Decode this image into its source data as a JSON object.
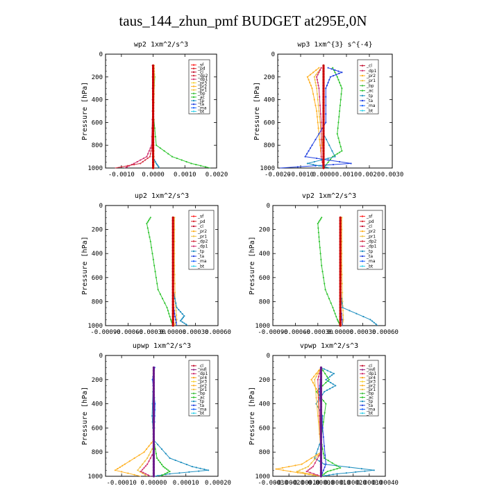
{
  "figure_title": "taus_144_zhun_pmf  BUDGET at295E,0N",
  "colors": {
    "sf": "#ff2020",
    "pd": "#d8202a",
    "cl": "#c31030",
    "dp1": "#d03070",
    "dp2": "#d43040",
    "dp3": "#e0503a",
    "dp4": "#cc2244",
    "pr1": "#f0c040",
    "pr2": "#ffb020",
    "pr3": "#f6d23a",
    "pr4": "#f7a01a",
    "ac": "#2ec42e",
    "bp": "#3fbf3f",
    "tp": "#2090c0",
    "ta": "#2040e0",
    "ma": "#1860ff",
    "bt": "#30d0e8",
    "mfl": "#8b1a7a",
    "bar": "#e00000",
    "bar_purple": "#6a1a8a"
  },
  "chart_data": [
    {
      "type": "line",
      "title": "wp2  1xm^2/s^3",
      "ylabel": "Pressure [hPa]",
      "xlim": [
        -0.0015,
        0.002
      ],
      "ylim": [
        1000,
        0
      ],
      "xticks": [
        "-0.0010",
        "0.0000",
        "0.0010",
        "0.0020"
      ],
      "yticks": [
        "0",
        "200",
        "400",
        "600",
        "800",
        "1000"
      ],
      "legend": [
        "_sf",
        "_pd",
        "_cl",
        "_dp2",
        "_dp1",
        "_pr3",
        "_pr2",
        "_pr1",
        "_bp",
        "_ac",
        "_tp",
        "_ta",
        "_ma",
        "_bt"
      ],
      "series": [
        {
          "name": "_ac",
          "color_key": "ac",
          "pressure": [
            100,
            200,
            500,
            800,
            900,
            960,
            1000
          ],
          "values": [
            0.0,
            5e-05,
            0.0,
            0.0001,
            0.0006,
            0.0012,
            0.0018
          ]
        },
        {
          "name": "_pr1",
          "color_key": "pr1",
          "pressure": [
            100,
            200,
            500,
            800,
            1000
          ],
          "values": [
            3e-05,
            4e-05,
            2e-05,
            2e-05,
            3e-05
          ]
        },
        {
          "name": "_dp1",
          "color_key": "dp1",
          "pressure": [
            100,
            500,
            800,
            900,
            960,
            1000
          ],
          "values": [
            -2e-05,
            -2e-05,
            -5e-05,
            -0.0002,
            -0.0006,
            -0.0009
          ]
        },
        {
          "name": "_dp2",
          "color_key": "dp2",
          "pressure": [
            100,
            500,
            800,
            900,
            960,
            1000
          ],
          "values": [
            -1e-05,
            -1e-05,
            -3e-05,
            -0.0001,
            -0.0004,
            -0.0012
          ]
        },
        {
          "name": "_tp",
          "color_key": "tp",
          "pressure": [
            100,
            500,
            900,
            960,
            1000
          ],
          "values": [
            0.0,
            0.0,
            -2e-05,
            0.0001,
            0.0002
          ]
        },
        {
          "name": "_pd",
          "color_key": "pd",
          "pressure": [
            100,
            1000
          ],
          "values": [
            0.0,
            0.0
          ]
        }
      ]
    },
    {
      "type": "line",
      "title": "wp3  1xm^{3} s^{-4}",
      "ylabel": "Pressure [hPa]",
      "xlim": [
        -0.002,
        0.003
      ],
      "ylim": [
        1000,
        0
      ],
      "xticks": [
        "-0.0020",
        "-0.0010",
        "0.0000",
        "0.0010",
        "0.0020",
        "0.0030"
      ],
      "yticks": [
        "0",
        "200",
        "400",
        "600",
        "800",
        "1000"
      ],
      "legend": [
        "_cl",
        "_dp1",
        "_pr2",
        "_pr1",
        "_bp",
        "_ac",
        "_tp",
        "_ta",
        "_ma",
        "_bt"
      ],
      "series": [
        {
          "name": "_ac",
          "color_key": "ac",
          "pressure": [
            120,
            200,
            300,
            500,
            700,
            850,
            900,
            1000
          ],
          "values": [
            0.0004,
            0.0006,
            0.0008,
            0.0007,
            0.0006,
            0.0008,
            0.0004,
            0.0
          ]
        },
        {
          "name": "_pr2",
          "color_key": "pr2",
          "pressure": [
            120,
            200,
            300,
            500,
            700,
            900,
            1000
          ],
          "values": [
            -0.0002,
            -0.0007,
            -0.0005,
            -0.0003,
            -0.0002,
            -0.0001,
            0.0
          ]
        },
        {
          "name": "_pr1",
          "color_key": "pr1",
          "pressure": [
            120,
            200,
            300,
            500,
            700,
            900,
            1000
          ],
          "values": [
            -0.0001,
            -0.0004,
            -0.0003,
            -0.0002,
            -0.0001,
            0.0,
            0.0
          ]
        },
        {
          "name": "_dp1",
          "color_key": "dp1",
          "pressure": [
            120,
            200,
            300,
            600,
            900,
            1000
          ],
          "values": [
            -0.0001,
            -0.0003,
            -0.0002,
            -0.0001,
            -0.0001,
            0.0
          ]
        },
        {
          "name": "_ta",
          "color_key": "ta",
          "pressure": [
            120,
            160,
            200,
            300,
            600,
            800,
            900,
            960,
            1000
          ],
          "values": [
            0.0002,
            0.0008,
            0.0003,
            0.0001,
            0.0001,
            -0.0005,
            -0.0008,
            0.0012,
            -0.0019
          ]
        },
        {
          "name": "_tp",
          "color_key": "tp",
          "pressure": [
            120,
            300,
            700,
            900,
            960,
            1000
          ],
          "values": [
            0.0,
            0.0,
            0.0,
            0.0005,
            -0.0007,
            0.0003
          ]
        }
      ]
    },
    {
      "type": "line",
      "title": "up2  1xm^2/s^3",
      "ylabel": "Pressure [hPa]",
      "xlim": [
        -0.0009,
        0.0006
      ],
      "ylim": [
        1000,
        0
      ],
      "xticks": [
        "-0.00090",
        "-0.00060",
        "-0.00030",
        "0.00000",
        "0.00030",
        "0.00060"
      ],
      "yticks": [
        "0",
        "200",
        "400",
        "600",
        "800",
        "1000"
      ],
      "legend": [
        "_sf",
        "_pd",
        "_cl",
        "_pr2",
        "_pr1",
        "_dp2",
        "_dp1",
        "_tp",
        "_ta",
        "_ma",
        "_bt"
      ],
      "series": [
        {
          "name": "_ac",
          "color_key": "ac",
          "pressure": [
            100,
            150,
            300,
            500,
            700,
            850,
            950,
            1000
          ],
          "values": [
            -0.0003,
            -0.00035,
            -0.0003,
            -0.00025,
            -0.0002,
            -8e-05,
            -3e-05,
            0.0
          ]
        },
        {
          "name": "_pr1",
          "color_key": "pr1",
          "pressure": [
            100,
            500,
            800,
            950,
            1000
          ],
          "values": [
            2e-05,
            2e-05,
            3e-05,
            5e-05,
            2e-05
          ]
        },
        {
          "name": "_tp",
          "color_key": "tp",
          "pressure": [
            100,
            700,
            850,
            920,
            960,
            1000
          ],
          "values": [
            0.0,
            0.0,
            5e-05,
            0.00015,
            0.0001,
            0.0002
          ]
        },
        {
          "name": "_ta",
          "color_key": "ta",
          "pressure": [
            100,
            800,
            900,
            1000
          ],
          "values": [
            0.0,
            0.0,
            2e-05,
            5e-05
          ]
        },
        {
          "name": "_pd",
          "color_key": "pd",
          "pressure": [
            100,
            1000
          ],
          "values": [
            0.0,
            0.0
          ]
        }
      ]
    },
    {
      "type": "line",
      "title": "vp2  1xm^2/s^3",
      "ylabel": "Pressure [hPa]",
      "xlim": [
        -0.0009,
        0.0006
      ],
      "ylim": [
        1000,
        0
      ],
      "xticks": [
        "-0.00090",
        "-0.00060",
        "-0.00030",
        "0.00000",
        "0.00030",
        "0.00060"
      ],
      "yticks": [
        "0",
        "200",
        "400",
        "600",
        "800",
        "1000"
      ],
      "legend": [
        "_sf",
        "_pd",
        "_cl",
        "_pr2",
        "_pr1",
        "_dp2",
        "_dp1",
        "_tp",
        "_ta",
        "_ma",
        "_bt"
      ],
      "series": [
        {
          "name": "_ac",
          "color_key": "ac",
          "pressure": [
            100,
            150,
            300,
            500,
            700,
            850,
            950,
            1000
          ],
          "values": [
            -0.00025,
            -0.0003,
            -0.00028,
            -0.00025,
            -0.0002,
            -0.0001,
            -4e-05,
            0.0
          ]
        },
        {
          "name": "_pr1",
          "color_key": "pr1",
          "pressure": [
            100,
            500,
            800,
            950,
            1000
          ],
          "values": [
            2e-05,
            2e-05,
            3e-05,
            4e-05,
            2e-05
          ]
        },
        {
          "name": "_tp",
          "color_key": "tp",
          "pressure": [
            100,
            700,
            850,
            950,
            1000
          ],
          "values": [
            0.0,
            0.0,
            3e-05,
            0.0004,
            0.0005
          ]
        },
        {
          "name": "_ta",
          "color_key": "ta",
          "pressure": [
            100,
            800,
            1000
          ],
          "values": [
            0.0,
            0.0,
            3e-05
          ]
        },
        {
          "name": "_pd",
          "color_key": "pd",
          "pressure": [
            100,
            1000
          ],
          "values": [
            0.0,
            0.0
          ]
        }
      ]
    },
    {
      "type": "line",
      "title": "upwp  1xm^2/s^3",
      "ylabel": "Pressure [hPa]",
      "xlim": [
        -0.00015,
        0.0002
      ],
      "ylim": [
        1000,
        0
      ],
      "xticks": [
        "-0.00010",
        "0.00000",
        "0.00010",
        "0.00020"
      ],
      "yticks": [
        "0",
        "200",
        "400",
        "600",
        "800",
        "1000"
      ],
      "legend": [
        "_cl",
        "_mfl",
        "_dp1",
        "_pr4",
        "_pr3",
        "_pr2",
        "_pr1",
        "_bp",
        "_ac",
        "_tp",
        "_ta",
        "_ma",
        "_bt"
      ],
      "series": [
        {
          "name": "_tp",
          "color_key": "tp",
          "pressure": [
            100,
            500,
            700,
            850,
            920,
            950,
            980,
            1000
          ],
          "values": [
            0.0,
            -5e-06,
            0.0,
            5e-05,
            0.00012,
            0.00017,
            5e-05,
            0.0
          ]
        },
        {
          "name": "_ac",
          "color_key": "ac",
          "pressure": [
            100,
            700,
            850,
            920,
            960,
            1000
          ],
          "values": [
            0.0,
            0.0,
            1e-05,
            3e-05,
            5e-05,
            2e-05
          ]
        },
        {
          "name": "_pr2",
          "color_key": "pr2",
          "pressure": [
            100,
            700,
            800,
            900,
            950,
            1000
          ],
          "values": [
            0.0,
            0.0,
            -3e-05,
            -9e-05,
            -0.00012,
            -4e-05
          ]
        },
        {
          "name": "_pr1",
          "color_key": "pr1",
          "pressure": [
            100,
            750,
            850,
            950,
            1000
          ],
          "values": [
            0.0,
            0.0,
            -2e-05,
            -5e-05,
            -2e-05
          ]
        },
        {
          "name": "_dp1",
          "color_key": "dp1",
          "pressure": [
            100,
            800,
            900,
            960,
            1000
          ],
          "values": [
            0.0,
            0.0,
            -2e-05,
            -4e-05,
            -1e-05
          ]
        },
        {
          "name": "_ma",
          "color_key": "ma",
          "pressure": [
            100,
            200,
            400,
            600,
            1000
          ],
          "values": [
            3e-06,
            -4e-06,
            4e-06,
            2e-06,
            0.0
          ]
        }
      ]
    },
    {
      "type": "line",
      "title": "vpwp  1xm^2/s^3",
      "ylabel": "Pressure [hPa]",
      "xlim": [
        -0.0003,
        0.0004
      ],
      "ylim": [
        1000,
        0
      ],
      "xticks": [
        "-0.00030",
        "-0.00020",
        "-0.00010",
        "0.00000",
        "0.00010",
        "0.00020",
        "0.00030",
        "0.00040"
      ],
      "yticks": [
        "0",
        "200",
        "400",
        "600",
        "800",
        "1000"
      ],
      "legend": [
        "_cl",
        "_mfl",
        "_dp1",
        "_pr4",
        "_pr3",
        "_pr2",
        "_pr1",
        "_bp",
        "_ac",
        "_tp",
        "_ta",
        "_ma",
        "_bt"
      ],
      "series": [
        {
          "name": "_tp",
          "color_key": "tp",
          "pressure": [
            100,
            150,
            200,
            250,
            300,
            400,
            500,
            700,
            850,
            900,
            950,
            980,
            1000
          ],
          "values": [
            0.0,
            8e-05,
            3e-05,
            9e-05,
            2e-05,
            -3e-05,
            1e-05,
            0.0,
            -4e-05,
            2e-05,
            0.00033,
            0.0001,
            0.0
          ]
        },
        {
          "name": "_ac",
          "color_key": "ac",
          "pressure": [
            100,
            200,
            300,
            400,
            700,
            850,
            930,
            960,
            1000
          ],
          "values": [
            0.0,
            5e-05,
            -3e-05,
            3e-05,
            0.0,
            2e-05,
            0.00012,
            4e-05,
            0.0
          ]
        },
        {
          "name": "_pr2",
          "color_key": "pr2",
          "pressure": [
            100,
            200,
            300,
            800,
            900,
            940,
            980,
            1000
          ],
          "values": [
            0.0,
            -6e-05,
            -2e-05,
            0.0,
            -0.00012,
            -0.00028,
            -0.0001,
            0.0
          ]
        },
        {
          "name": "_pr1",
          "color_key": "pr1",
          "pressure": [
            100,
            200,
            800,
            920,
            960,
            1000
          ],
          "values": [
            0.0,
            -4e-05,
            0.0,
            -8e-05,
            -0.00015,
            0.0
          ]
        },
        {
          "name": "_dp1",
          "color_key": "dp1",
          "pressure": [
            100,
            200,
            800,
            920,
            960,
            1000
          ],
          "values": [
            0.0,
            -2e-05,
            0.0,
            -5e-05,
            -9e-05,
            0.0
          ]
        },
        {
          "name": "_ta",
          "color_key": "ta",
          "pressure": [
            100,
            300,
            600,
            900,
            1000
          ],
          "values": [
            0.0,
            -1e-05,
            1e-05,
            3e-05,
            0.0
          ]
        }
      ]
    }
  ]
}
